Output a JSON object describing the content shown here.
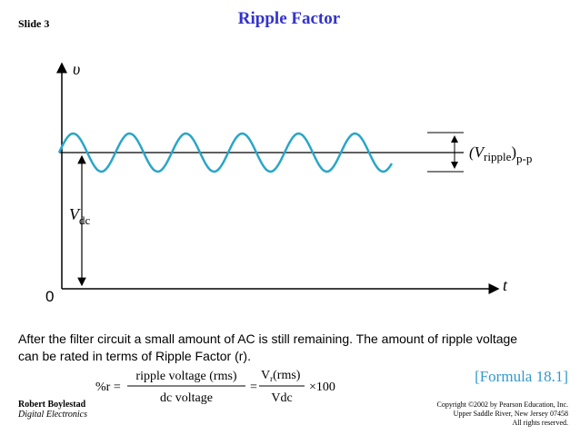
{
  "header": {
    "slide": "Slide 3",
    "title": "Ripple Factor"
  },
  "diagram": {
    "y_axis": "υ",
    "x_axis": "t",
    "origin": "0",
    "vdc_main": "V",
    "vdc_sub": "dc",
    "vpp_open": "(V",
    "vpp_sub": "ripple",
    "vpp_close": ")",
    "vpp_pp": "p-p"
  },
  "body": {
    "lines": [
      "After the filter circuit a small amount of AC is still remaining. The amount of ripple voltage",
      "can be rated in terms of Ripple Factor (r)."
    ]
  },
  "formula": {
    "lhs": "%r =",
    "num1": "ripple  voltage  (rms)",
    "den1": "dc voltage",
    "eq": "=",
    "num2_main": "V",
    "num2_sub": "r",
    "num2_rest": "(rms)",
    "den2": "Vdc",
    "times": "×100",
    "tag": "[Formula 18.1]"
  },
  "footer": {
    "author": "Robert Boylestad",
    "book": "Digital Electronics",
    "copyright": [
      "Copyright ©2002 by Pearson Education, Inc.",
      "Upper Saddle River, New Jersey 07458",
      "All rights reserved."
    ]
  }
}
